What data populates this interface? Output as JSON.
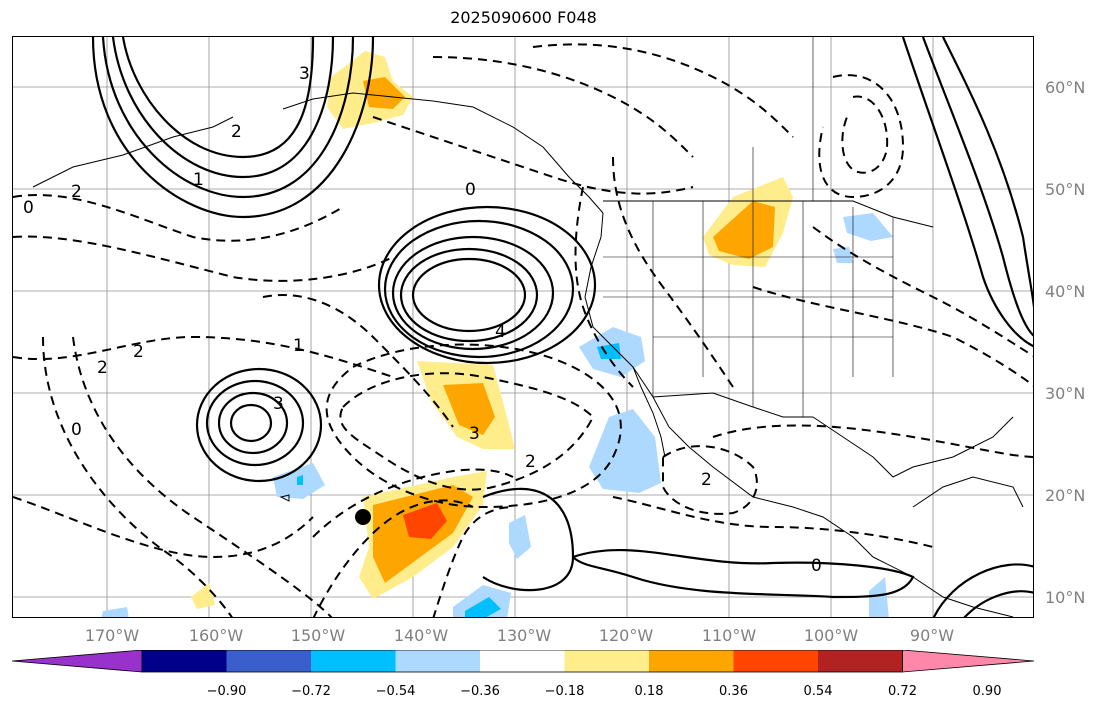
{
  "title": "2025090600 F048",
  "lat_labels": [
    "60°N",
    "50°N",
    "40°N",
    "30°N",
    "20°N",
    "10°N"
  ],
  "lon_labels": [
    "170°W",
    "160°W",
    "150°W",
    "140°W",
    "130°W",
    "120°W",
    "110°W",
    "100°W",
    "90°W"
  ],
  "contour_labels": [
    {
      "text": "0",
      "kind": "neg"
    },
    {
      "text": "2",
      "kind": "neg"
    },
    {
      "text": "1",
      "kind": "pos"
    },
    {
      "text": "2",
      "kind": "pos"
    },
    {
      "text": "3",
      "kind": "pos"
    },
    {
      "text": "4",
      "kind": "pos"
    },
    {
      "text": "0",
      "kind": "neg"
    },
    {
      "text": "2",
      "kind": "neg"
    },
    {
      "text": "3",
      "kind": "pos"
    },
    {
      "text": "2",
      "kind": "neg"
    },
    {
      "text": "0",
      "kind": "neg"
    },
    {
      "text": "1",
      "kind": "pos"
    },
    {
      "text": "0",
      "kind": "pos"
    },
    {
      "text": "2",
      "kind": "neg"
    },
    {
      "text": "3",
      "kind": "neg"
    },
    {
      "text": "2",
      "kind": "neg"
    }
  ],
  "colorbar": {
    "colors": [
      "#9932cc",
      "#00008b",
      "#3a5fcd",
      "#00bfff",
      "#add8ff",
      "#ffffff",
      "#ffec8b",
      "#ffa500",
      "#ff4500",
      "#b22222",
      "#ff88aa"
    ],
    "ticks": [
      "−0.90",
      "−0.72",
      "−0.54",
      "−0.36",
      "−0.18",
      "0.18",
      "0.36",
      "0.54",
      "0.72",
      "0.90"
    ]
  },
  "marker": {
    "label": "storm-center"
  }
}
